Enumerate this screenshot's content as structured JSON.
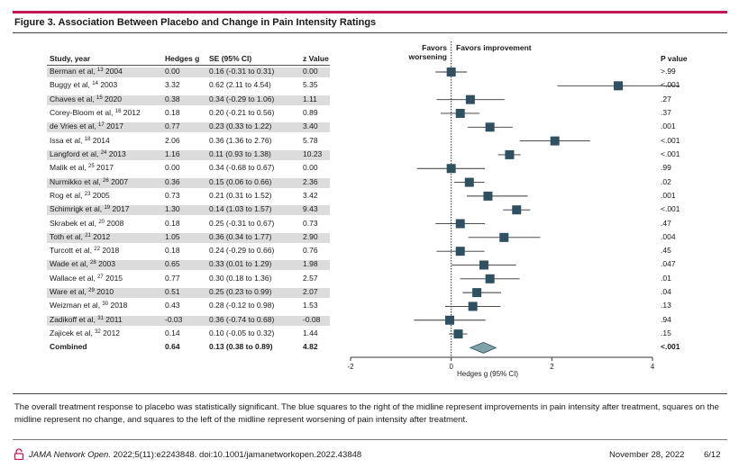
{
  "figure": {
    "title": "Figure 3. Association Between Placebo and Change in Pain Intensity Ratings",
    "caption": "The overall treatment response to placebo was statistically significant. The blue squares to the right of the midline represent improvements in pain intensity after treatment, squares on the midline represent no change, and squares to the left of the midline represent worsening of pain intensity after treatment."
  },
  "table": {
    "headers": {
      "study": "Study, year",
      "hedges_g": "Hedges g",
      "se": "SE (95% CI)",
      "z": "z Value",
      "favors_worsening": "Favors worsening",
      "favors_improvement": "Favors improvement",
      "p": "P value"
    },
    "rows": [
      {
        "author": "Berman et al,",
        "ref": "13",
        "year": "2004",
        "g": "0.00",
        "se": "0.16 (-0.31 to 0.31)",
        "z": "0.00",
        "p": ">.99"
      },
      {
        "author": "Buggy et al,",
        "ref": "14",
        "year": "2003",
        "g": "3.32",
        "se": "0.62 (2.11 to 4.54)",
        "z": "5.35",
        "p": "<.001"
      },
      {
        "author": "Chaves et al,",
        "ref": "15",
        "year": "2020",
        "g": "0.38",
        "se": "0.34 (-0.29 to 1.06)",
        "z": "1.11",
        "p": ".27"
      },
      {
        "author": "Corey-Bloom et al,",
        "ref": "16",
        "year": "2012",
        "g": "0.18",
        "se": "0.20 (-0.21 to 0.56)",
        "z": "0.89",
        "p": ".37"
      },
      {
        "author": "de Vries et al,",
        "ref": "17",
        "year": "2017",
        "g": "0.77",
        "se": "0.23 (0.33 to 1.22)",
        "z": "3.40",
        "p": ".001"
      },
      {
        "author": "Issa et al,",
        "ref": "18",
        "year": "2014",
        "g": "2.06",
        "se": "0.36 (1.36 to 2.76)",
        "z": "5.78",
        "p": "<.001"
      },
      {
        "author": "Langford et al,",
        "ref": "24",
        "year": "2013",
        "g": "1.16",
        "se": "0.11 (0.93 to 1.38)",
        "z": "10.23",
        "p": "<.001"
      },
      {
        "author": "Malik et al,",
        "ref": "25",
        "year": "2017",
        "g": "0.00",
        "se": "0.34 (-0.68 to 0.67)",
        "z": "0.00",
        "p": ".99"
      },
      {
        "author": "Nurmikko et al,",
        "ref": "26",
        "year": "2007",
        "g": "0.36",
        "se": "0.15 (0.06 to 0.66)",
        "z": "2.36",
        "p": ".02"
      },
      {
        "author": "Rog et al,",
        "ref": "23",
        "year": "2005",
        "g": "0.73",
        "se": "0.21 (0.31 to 1.52)",
        "z": "3.42",
        "p": ".001"
      },
      {
        "author": "Schimrigk et al,",
        "ref": "19",
        "year": "2017",
        "g": "1.30",
        "se": "0.14 (1.03 to 1.57)",
        "z": "9.43",
        "p": "<.001"
      },
      {
        "author": "Skrabek et al,",
        "ref": "20",
        "year": "2008",
        "g": "0.18",
        "se": "0.25 (-0.31 to 0.67)",
        "z": "0.73",
        "p": ".47"
      },
      {
        "author": "Toth et al,",
        "ref": "21",
        "year": "2012",
        "g": "1.05",
        "se": "0.36 (0.34 to 1.77)",
        "z": "2.90",
        "p": ".004"
      },
      {
        "author": "Turcott et al,",
        "ref": "22",
        "year": "2018",
        "g": "0.18",
        "se": "0.24 (-0.29 to 0.66)",
        "z": "0.76",
        "p": ".45"
      },
      {
        "author": "Wade et al,",
        "ref": "28",
        "year": "2003",
        "g": "0.65",
        "se": "0.33 (0.01 to 1.29)",
        "z": "1.98",
        "p": ".047"
      },
      {
        "author": "Wallace et al,",
        "ref": "27",
        "year": "2015",
        "g": "0.77",
        "se": "0.30 (0.18 to 1.36)",
        "z": "2.57",
        "p": ".01"
      },
      {
        "author": "Ware et al,",
        "ref": "29",
        "year": "2010",
        "g": "0.51",
        "se": "0.25 (0.23 to 0.99)",
        "z": "2.07",
        "p": ".04"
      },
      {
        "author": "Weizman et al,",
        "ref": "30",
        "year": "2018",
        "g": "0.43",
        "se": "0.28 (-0.12 to 0.98)",
        "z": "1.53",
        "p": ".13"
      },
      {
        "author": "Zadikoff et al,",
        "ref": "31",
        "year": "2011",
        "g": "-0.03",
        "se": "0.36 (-0.74 to 0.68)",
        "z": "-0.08",
        "p": ".94"
      },
      {
        "author": "Zajicek et al,",
        "ref": "32",
        "year": "2012",
        "g": "0.14",
        "se": "0.10 (-0.05 to 0.32)",
        "z": "1.44",
        "p": ".15"
      }
    ],
    "combined": {
      "label": "Combined",
      "g": "0.64",
      "se": "0.13 (0.38 to 0.89)",
      "z": "4.82",
      "p": "<.001"
    }
  },
  "chart_data": {
    "type": "forest",
    "xlabel": "Hedges g (95% CI)",
    "xlim": [
      -2,
      4
    ],
    "xticks": [
      "-2",
      "0",
      "2",
      "4"
    ],
    "reference_line": 0,
    "studies": [
      {
        "g": 0.0,
        "lo": -0.31,
        "hi": 0.31
      },
      {
        "g": 3.32,
        "lo": 2.11,
        "hi": 4.54
      },
      {
        "g": 0.38,
        "lo": -0.29,
        "hi": 1.06
      },
      {
        "g": 0.18,
        "lo": -0.21,
        "hi": 0.56
      },
      {
        "g": 0.77,
        "lo": 0.33,
        "hi": 1.22
      },
      {
        "g": 2.06,
        "lo": 1.36,
        "hi": 2.76
      },
      {
        "g": 1.16,
        "lo": 0.93,
        "hi": 1.38
      },
      {
        "g": 0.0,
        "lo": -0.68,
        "hi": 0.67
      },
      {
        "g": 0.36,
        "lo": 0.06,
        "hi": 0.66
      },
      {
        "g": 0.73,
        "lo": 0.31,
        "hi": 1.52
      },
      {
        "g": 1.3,
        "lo": 1.03,
        "hi": 1.57
      },
      {
        "g": 0.18,
        "lo": -0.31,
        "hi": 0.67
      },
      {
        "g": 1.05,
        "lo": 0.34,
        "hi": 1.77
      },
      {
        "g": 0.18,
        "lo": -0.29,
        "hi": 0.66
      },
      {
        "g": 0.65,
        "lo": 0.01,
        "hi": 1.29
      },
      {
        "g": 0.77,
        "lo": 0.18,
        "hi": 1.36
      },
      {
        "g": 0.51,
        "lo": 0.23,
        "hi": 0.99
      },
      {
        "g": 0.43,
        "lo": -0.12,
        "hi": 0.98
      },
      {
        "g": -0.03,
        "lo": -0.74,
        "hi": 0.68
      },
      {
        "g": 0.14,
        "lo": -0.05,
        "hi": 0.32
      }
    ],
    "combined": {
      "g": 0.64,
      "lo": 0.38,
      "hi": 0.89
    },
    "colors": {
      "marker": "#2e5060",
      "diamond": "#7fa3a8",
      "accent": "#c3175a"
    }
  },
  "footer": {
    "journal": "JAMA Network Open.",
    "citation": "2022;5(11):e2243848. doi:10.1001/jamanetworkopen.2022.43848",
    "date": "November 28, 2022",
    "page": "6/12"
  }
}
